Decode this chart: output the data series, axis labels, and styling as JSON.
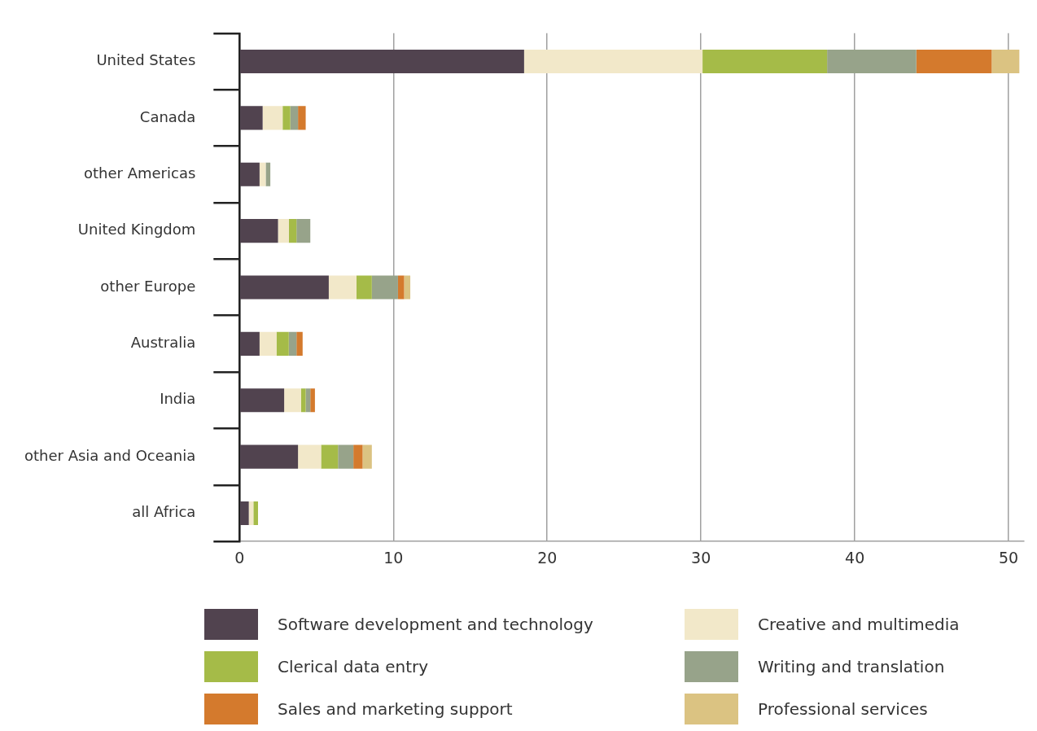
{
  "chart_data": {
    "type": "bar",
    "orientation": "horizontal",
    "stacked": true,
    "categories": [
      "United States",
      "Canada",
      "other Americas",
      "United Kingdom",
      "other Europe",
      "Australia",
      "India",
      "other Asia and Oceania",
      "all Africa"
    ],
    "series": [
      {
        "name": "Software development and technology",
        "color": "#51434f",
        "values": [
          18.5,
          1.5,
          1.3,
          2.5,
          5.8,
          1.3,
          2.9,
          3.8,
          0.6
        ]
      },
      {
        "name": "Creative and multimedia",
        "color": "#f2e8c9",
        "values": [
          11.6,
          1.3,
          0.4,
          0.7,
          1.8,
          1.1,
          1.1,
          1.5,
          0.3
        ]
      },
      {
        "name": "Clerical data entry",
        "color": "#a5bb48",
        "values": [
          8.1,
          0.5,
          0,
          0.5,
          1.0,
          0.8,
          0.3,
          1.1,
          0.3
        ]
      },
      {
        "name": "Writing and translation",
        "color": "#97a38a",
        "values": [
          5.8,
          0.5,
          0.3,
          0.9,
          1.7,
          0.5,
          0.3,
          1.0,
          0
        ]
      },
      {
        "name": "Sales and marketing support",
        "color": "#d47a2d",
        "values": [
          4.9,
          0.5,
          0,
          0,
          0.4,
          0.4,
          0.3,
          0.6,
          0
        ]
      },
      {
        "name": "Professional services",
        "color": "#dbc382",
        "values": [
          1.8,
          0,
          0,
          0,
          0.4,
          0,
          0,
          0.6,
          0
        ]
      }
    ],
    "xlim": [
      0,
      51
    ],
    "xticks": [
      0,
      10,
      20,
      30,
      40,
      50
    ],
    "grid": "x",
    "legend": "bottom"
  }
}
